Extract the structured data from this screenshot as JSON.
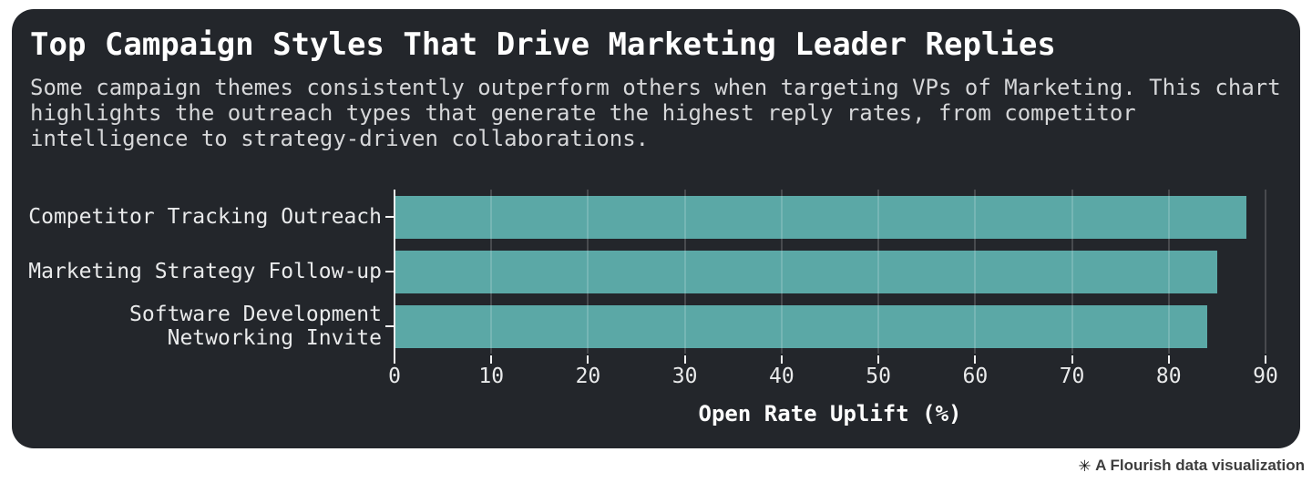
{
  "card": {
    "title": "Top Campaign Styles That Drive Marketing Leader Replies",
    "subtitle": "Some campaign themes consistently outperform others when targeting VPs of Marketing. This chart highlights the outreach types that generate the highest reply rates, from competitor intelligence to strategy-driven collaborations."
  },
  "chart_data": {
    "type": "bar",
    "orientation": "horizontal",
    "categories": [
      "Competitor Tracking Outreach",
      "Marketing Strategy Follow-up",
      "Software Development Networking Invite"
    ],
    "label_lines": [
      [
        "Competitor Tracking Outreach"
      ],
      [
        "Marketing Strategy Follow-up"
      ],
      [
        "Software Development",
        "Networking Invite"
      ]
    ],
    "values": [
      88,
      85,
      84
    ],
    "xlabel": "Open Rate Uplift (%)",
    "xticks": [
      0,
      10,
      20,
      30,
      40,
      50,
      60,
      70,
      80,
      90
    ],
    "xlim": [
      0,
      90
    ],
    "grid": true,
    "legend": "none",
    "bar_color": "#5ba8a6",
    "background": "#23262b",
    "axis_color": "#f2f2f2",
    "tick_label_color": "#e9eaeb"
  },
  "footer": {
    "attribution": "A Flourish data visualization",
    "logo_glyph": "✳"
  }
}
